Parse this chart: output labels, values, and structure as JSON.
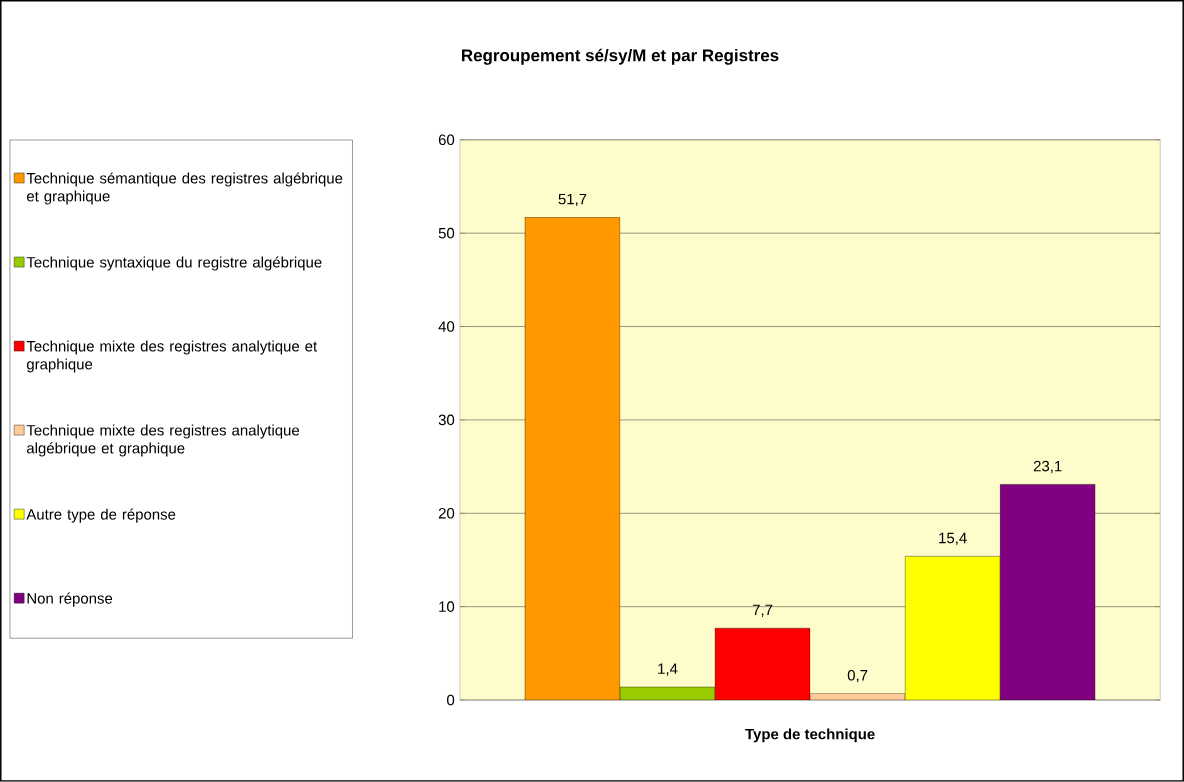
{
  "chart_data": {
    "type": "bar",
    "title": "Regroupement sé/sy/M et par Registres",
    "xlabel": "Type de technique",
    "categories": [
      null
    ],
    "series": [
      {
        "name": "Technique sémantique des registres algébrique et graphique",
        "color": "#ff9900",
        "values": [
          51.7
        ],
        "value_labels": [
          "51,7"
        ]
      },
      {
        "name": "Technique syntaxique du registre algébrique",
        "color": "#99cc00",
        "values": [
          1.4
        ],
        "value_labels": [
          "1,4"
        ]
      },
      {
        "name": "Technique mixte des registres analytique et graphique",
        "color": "#ff0000",
        "values": [
          7.7
        ],
        "value_labels": [
          "7,7"
        ]
      },
      {
        "name": "Technique mixte des registres analytique algébrique et graphique",
        "color": "#ffcc99",
        "values": [
          0.7
        ],
        "value_labels": [
          "0,7"
        ]
      },
      {
        "name": "Autre type de réponse",
        "color": "#ffff00",
        "values": [
          15.4
        ],
        "value_labels": [
          "15,4"
        ]
      },
      {
        "name": "Non réponse",
        "color": "#800080",
        "values": [
          23.1
        ],
        "value_labels": [
          "23,1"
        ]
      }
    ],
    "ylim": [
      0,
      60
    ],
    "yticks": [
      0,
      10,
      20,
      30,
      40,
      50,
      60
    ],
    "grid": "y",
    "legend": "left"
  }
}
